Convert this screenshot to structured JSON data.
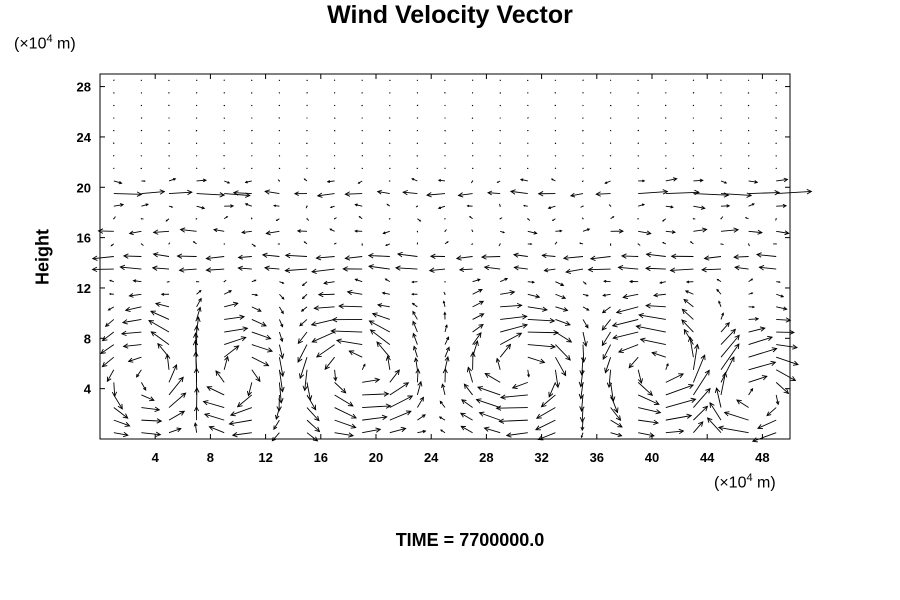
{
  "chart_data": {
    "type": "quiver",
    "title": "Wind Velocity Vector",
    "ylabel": "Height",
    "xunit_prefix": "(×10",
    "xunit_exp": "4",
    "xunit_suffix": " m)",
    "yunit_prefix": "(×10",
    "yunit_exp": "4",
    "yunit_suffix": " m)",
    "xlim": [
      0,
      50
    ],
    "ylim": [
      0,
      29
    ],
    "xticks": [
      4,
      8,
      12,
      16,
      20,
      24,
      28,
      32,
      36,
      40,
      44,
      48
    ],
    "yticks": [
      4,
      8,
      12,
      16,
      20,
      24,
      28
    ],
    "grid": false,
    "vector_grid": {
      "nx": 25,
      "ny": 29,
      "dx": 2,
      "dy": 1
    },
    "time_label": "TIME = 7700000.0"
  }
}
